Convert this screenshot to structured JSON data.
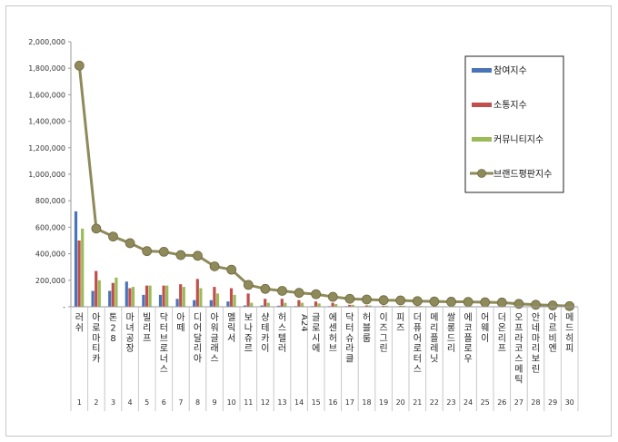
{
  "chart_data": {
    "type": "bar",
    "title": "",
    "xlabel": "",
    "ylabel": "",
    "ylim": [
      0,
      2000000
    ],
    "yticks": [
      "-",
      "200,000",
      "400,000",
      "600,000",
      "800,000",
      "1,000,000",
      "1,200,000",
      "1,400,000",
      "1,600,000",
      "1,800,000",
      "2,000,000"
    ],
    "ranks": [
      1,
      2,
      3,
      4,
      5,
      6,
      7,
      8,
      9,
      10,
      11,
      12,
      13,
      14,
      15,
      16,
      17,
      18,
      19,
      20,
      21,
      22,
      23,
      24,
      25,
      26,
      27,
      28,
      29,
      30
    ],
    "categories": [
      "러쉬",
      "아로마티카",
      "톤28",
      "마녀공장",
      "빌리프",
      "닥터브로너스",
      "아떼",
      "디어달리아",
      "아워글래스",
      "멜릭서",
      "보나쥬르",
      "샹테카이",
      "허스텔러",
      "A24",
      "글로시에",
      "에센허브",
      "닥터슈라클",
      "허블룸",
      "이즈그린",
      "피즈",
      "더퓨어로터스",
      "메리플레닛",
      "쌀롱드리",
      "에코플로우",
      "어웨이",
      "더온리프",
      "오프라코스메틱",
      "안네마리보린",
      "아르비엔",
      "메드히피"
    ],
    "series": [
      {
        "name": "참여지수",
        "type": "bar",
        "color": "#4a74b8",
        "values": [
          720000,
          120000,
          120000,
          190000,
          90000,
          90000,
          60000,
          50000,
          50000,
          40000,
          10000,
          10000,
          8000,
          5000,
          5000,
          5000,
          5000,
          3000,
          3000,
          3000,
          2000,
          2000,
          2000,
          2000,
          2000,
          2000,
          2000,
          1000,
          1000,
          1000
        ]
      },
      {
        "name": "소통지수",
        "type": "bar",
        "color": "#c0504d",
        "values": [
          500000,
          270000,
          180000,
          140000,
          160000,
          160000,
          170000,
          210000,
          150000,
          140000,
          100000,
          60000,
          60000,
          50000,
          40000,
          30000,
          15000,
          10000,
          8000,
          6000,
          5000,
          5000,
          4000,
          4000,
          3000,
          3000,
          3000,
          2000,
          2000,
          2000
        ]
      },
      {
        "name": "커뮤니티지수",
        "type": "bar",
        "color": "#9bbb59",
        "values": [
          590000,
          200000,
          220000,
          150000,
          160000,
          160000,
          150000,
          140000,
          100000,
          90000,
          30000,
          30000,
          30000,
          30000,
          25000,
          20000,
          15000,
          10000,
          8000,
          8000,
          6000,
          5000,
          5000,
          5000,
          4000,
          4000,
          4000,
          3000,
          3000,
          3000
        ]
      },
      {
        "name": "브랜드평판지수",
        "type": "line",
        "color": "#8e8a5a",
        "values": [
          1820000,
          590000,
          530000,
          480000,
          420000,
          415000,
          390000,
          385000,
          305000,
          280000,
          165000,
          135000,
          120000,
          105000,
          95000,
          75000,
          60000,
          55000,
          50000,
          48000,
          43000,
          40000,
          38000,
          37000,
          34000,
          32000,
          22000,
          15000,
          10000,
          5000
        ]
      }
    ],
    "legend": "top-right"
  }
}
